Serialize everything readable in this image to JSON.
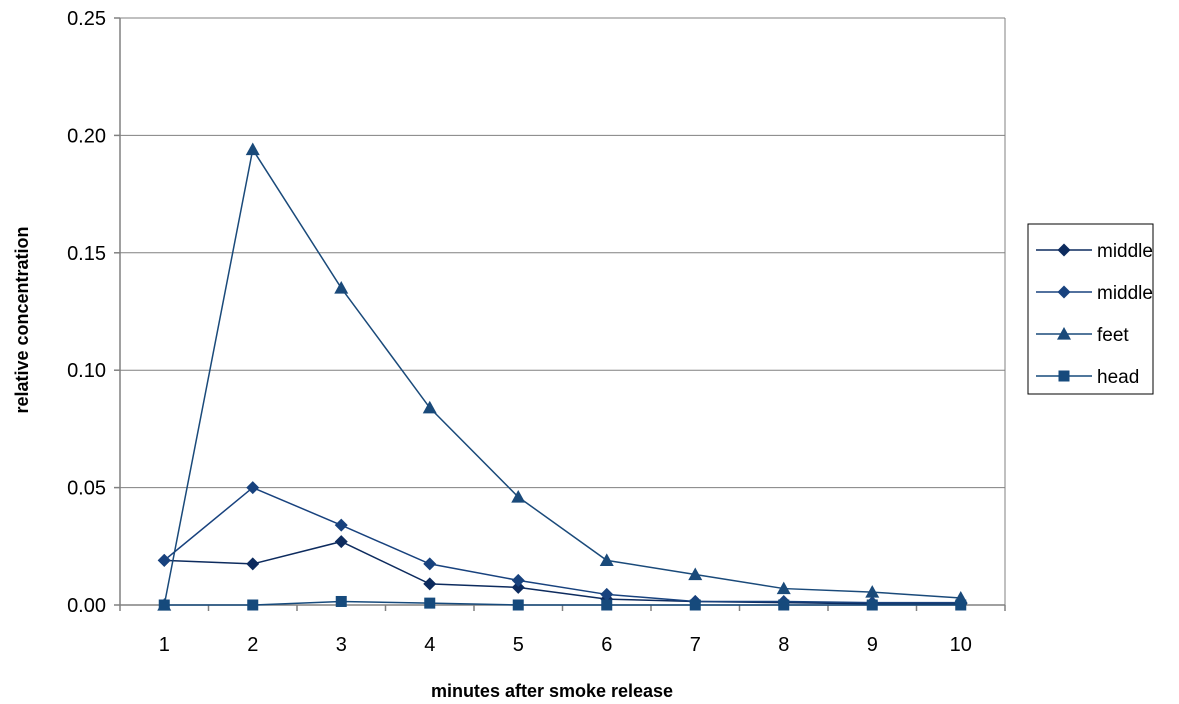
{
  "chart_data": {
    "type": "line",
    "title": "",
    "xlabel": "minutes after smoke release",
    "ylabel": "relative concentration",
    "categories": [
      "1",
      "2",
      "3",
      "4",
      "5",
      "6",
      "7",
      "8",
      "9",
      "10"
    ],
    "ylim": [
      0,
      0.25
    ],
    "yticks": [
      "0.00",
      "0.05",
      "0.10",
      "0.15",
      "0.20",
      "0.25"
    ],
    "ytick_values": [
      0,
      0.05,
      0.1,
      0.15,
      0.2,
      0.25
    ],
    "grid": true,
    "legend_position": "right",
    "series": [
      {
        "name": "middle",
        "marker": "diamond",
        "color": "#0d2b5e",
        "values": [
          0.019,
          0.0175,
          0.027,
          0.009,
          0.0075,
          0.0025,
          0.0015,
          0.001,
          0.0005,
          0.0005
        ]
      },
      {
        "name": "middle",
        "marker": "diamond",
        "color": "#18427e",
        "values": [
          0.019,
          0.05,
          0.034,
          0.0175,
          0.0105,
          0.0045,
          0.0015,
          0.0015,
          0.001,
          0.001
        ]
      },
      {
        "name": "feet",
        "marker": "triangle",
        "color": "#1a4a7a",
        "values": [
          0.0,
          0.194,
          0.135,
          0.084,
          0.046,
          0.019,
          0.013,
          0.007,
          0.0055,
          0.003
        ]
      },
      {
        "name": "head",
        "marker": "square",
        "color": "#164a7c",
        "values": [
          0.0,
          0.0,
          0.0015,
          0.0008,
          0.0,
          0.0,
          0.0,
          0.0,
          0.0,
          0.0
        ]
      }
    ]
  }
}
